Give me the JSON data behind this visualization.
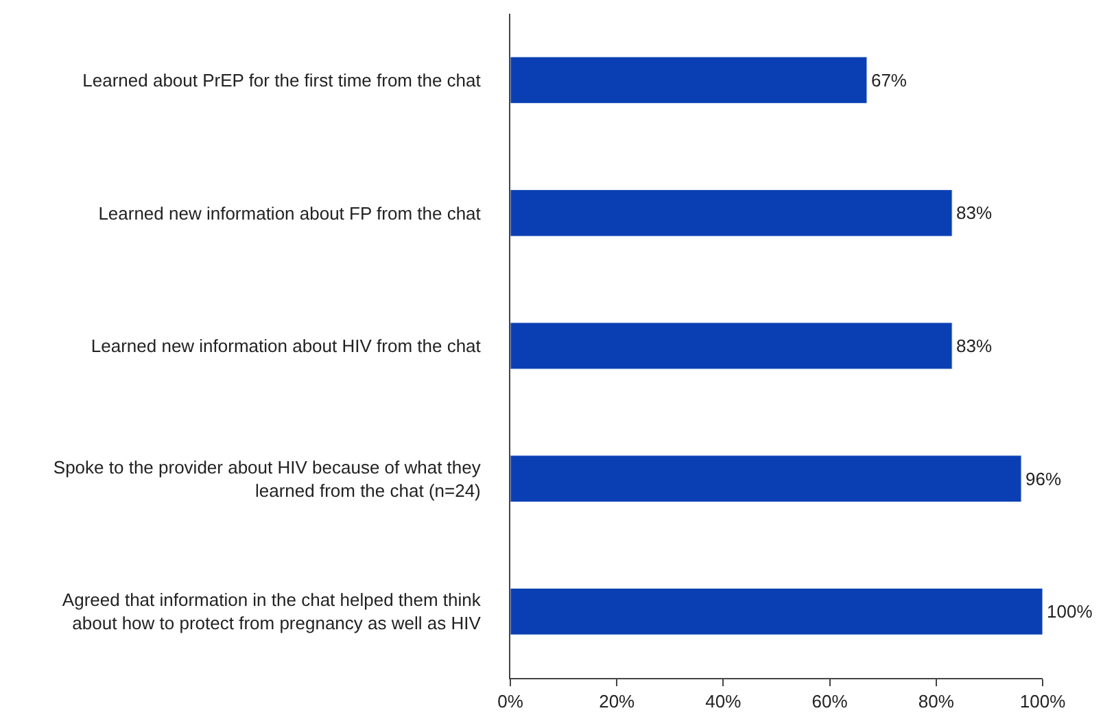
{
  "chart_data": {
    "type": "bar",
    "orientation": "horizontal",
    "categories": [
      "Learned about PrEP for the first time from the chat",
      "Learned new information about FP from the chat",
      "Learned new information about HIV from the chat",
      "Spoke to the provider about HIV because of what they\nlearned from the chat (n=24)",
      "Agreed that information in the chat helped them think\nabout how to protect from pregnancy as well as HIV"
    ],
    "values": [
      67,
      83,
      83,
      96,
      100
    ],
    "value_labels": [
      "67%",
      "83%",
      "83%",
      "96%",
      "100%"
    ],
    "color": "#0a3fb4",
    "xlim": [
      0,
      100
    ],
    "xticks": [
      {
        "value": 0,
        "label": "0%"
      },
      {
        "value": 20,
        "label": "20%"
      },
      {
        "value": 40,
        "label": "40%"
      },
      {
        "value": 60,
        "label": "60%"
      },
      {
        "value": 80,
        "label": "80%"
      },
      {
        "value": 100,
        "label": "100%"
      }
    ]
  }
}
